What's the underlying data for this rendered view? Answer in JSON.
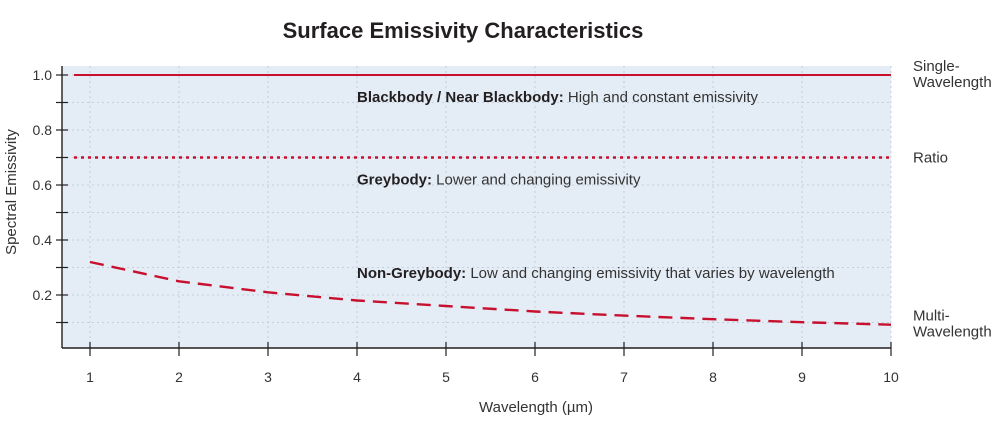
{
  "chart_data": {
    "type": "line",
    "title": "Surface Emissivity Characteristics",
    "xlabel": "Wavelength (µm)",
    "ylabel": "Spectral Emissivity",
    "xlim": [
      0.8,
      10
    ],
    "ylim": [
      0,
      1.05
    ],
    "x_ticks": [
      1,
      2,
      3,
      4,
      5,
      6,
      7,
      8,
      9,
      10
    ],
    "y_ticks": [
      1.0,
      0.8,
      0.6,
      0.4,
      0.2
    ],
    "y_tick_labels": [
      "1.0",
      "0.8",
      "0.6",
      "0.4",
      "0.2"
    ],
    "grid": true,
    "series": [
      {
        "line_style": "solid",
        "color": "#c8102e",
        "x": [
          0.8,
          10
        ],
        "y": [
          1.0,
          1.0
        ]
      },
      {
        "line_style": "dotted",
        "color": "#c8102e",
        "x": [
          0.8,
          10
        ],
        "y": [
          0.7,
          0.7
        ]
      },
      {
        "line_style": "dashed",
        "color": "#c8102e",
        "x": [
          1,
          2,
          3,
          4,
          5,
          6,
          7,
          8,
          9,
          10
        ],
        "y": [
          0.32,
          0.25,
          0.21,
          0.18,
          0.16,
          0.14,
          0.125,
          0.112,
          0.101,
          0.092
        ]
      }
    ],
    "annotations": [
      {
        "bold": "Blackbody / Near Blackbody:",
        "text": " High and constant emissivity",
        "x": 4,
        "y": 0.92
      },
      {
        "bold": "Greybody:",
        "text": " Lower and changing emissivity",
        "x": 4,
        "y": 0.62
      },
      {
        "bold": "Non-Greybody:",
        "text": " Low and changing emissivity that varies by wavelength",
        "x": 4,
        "y": 0.28
      }
    ],
    "right_labels": [
      {
        "lines": [
          "Single-",
          "Wavelength"
        ],
        "y": 1.0
      },
      {
        "lines": [
          "Ratio"
        ],
        "y": 0.7
      },
      {
        "lines": [
          "Multi-",
          "Wavelength"
        ],
        "y": 0.092
      }
    ],
    "colors": {
      "plot_background": "#e4ecf5",
      "series": "#c8102e",
      "axis": "#231f20",
      "grid": "#b9c6d4"
    }
  }
}
